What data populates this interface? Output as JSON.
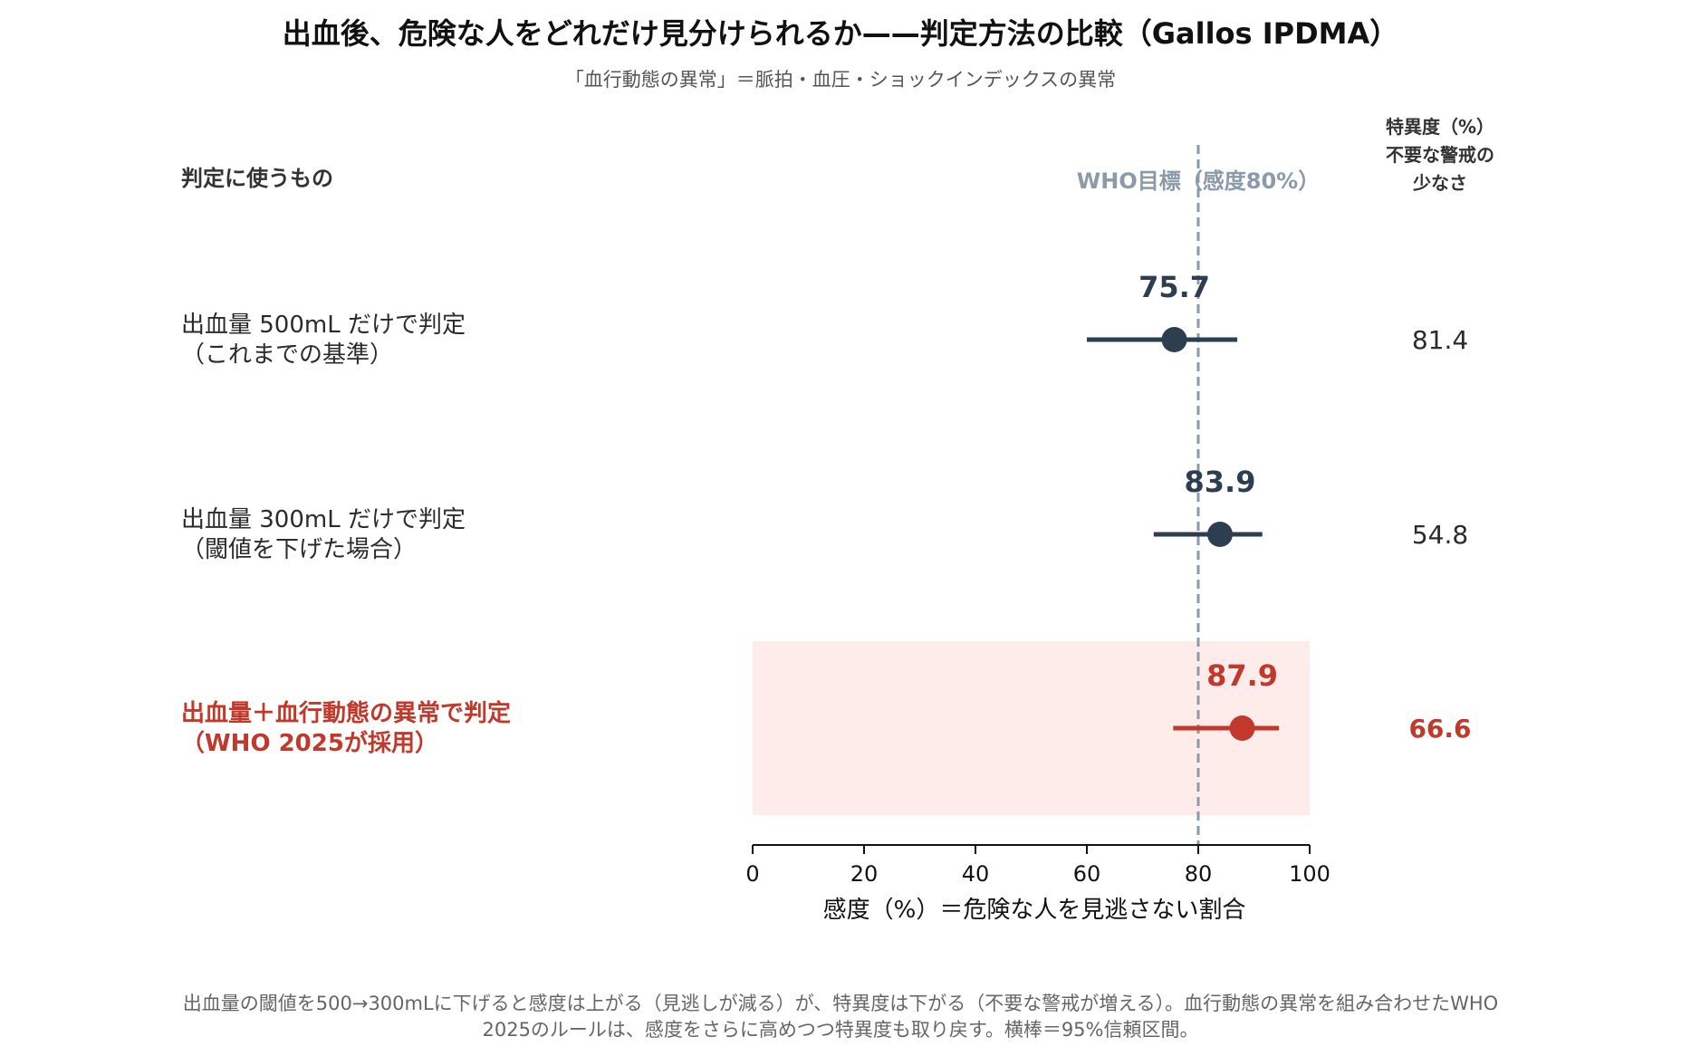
{
  "chart_data": {
    "type": "forest",
    "title": "出血後、危険な人をどれだけ見分けられるか——判定方法の比較（Gallos IPDMA）",
    "subtitle": "「血行動態の異常」＝脈拍・血圧・ショックインデックスの異常",
    "left_header": "判定に使うもの",
    "right_header": [
      "特異度（%）",
      "不要な警戒の",
      "少なさ"
    ],
    "reference": {
      "value": 80,
      "label": "WHO目標（感度80%）",
      "color": "#8a9aa8"
    },
    "xlabel": "感度（%）＝危険な人を見逃さない割合",
    "xlim": [
      0,
      100
    ],
    "xticks": [
      "0",
      "20",
      "40",
      "60",
      "80",
      "100"
    ],
    "rows": [
      {
        "label_lines": [
          "出血量 500mL だけで判定",
          "（これまでの基準）"
        ],
        "sensitivity": 75.7,
        "sensitivity_label": "75.7",
        "ci": [
          60,
          87
        ],
        "specificity": "81.4",
        "color": "#2c3e50",
        "highlight": false
      },
      {
        "label_lines": [
          "出血量 300mL だけで判定",
          "（閾値を下げた場合）"
        ],
        "sensitivity": 83.9,
        "sensitivity_label": "83.9",
        "ci": [
          72,
          91.5
        ],
        "specificity": "54.8",
        "color": "#2c3e50",
        "highlight": false
      },
      {
        "label_lines": [
          "出血量＋血行動態の異常で判定",
          "（WHO 2025が採用）"
        ],
        "sensitivity": 87.9,
        "sensitivity_label": "87.9",
        "ci": [
          75.5,
          94.5
        ],
        "specificity": "66.6",
        "color": "#c0392b",
        "highlight": true,
        "highlight_bg": "#fdecea"
      }
    ],
    "footnote": [
      "出血量の閾値を500→300mLに下げると感度は上がる（見逃しが減る）が、特異度は下がる（不要な警戒が増える）。血行動態の異常を組み合わせたWHO",
      "2025のルールは、感度をさらに高めつつ特異度も取り戻す。横棒＝95%信頼区間。"
    ]
  }
}
